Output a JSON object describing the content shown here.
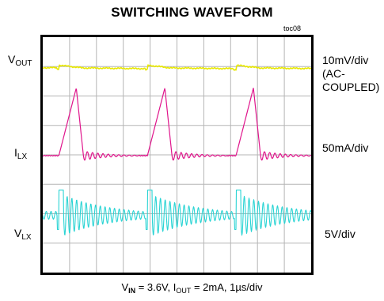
{
  "chart_data": {
    "type": "line",
    "title": "SWITCHING WAVEFORM",
    "figure_id": "toc08",
    "left_labels": {
      "vout": {
        "main": "V",
        "sub": "OUT"
      },
      "ilx": {
        "main": "I",
        "sub": "LX"
      },
      "vlx": {
        "main": "V",
        "sub": "LX"
      }
    },
    "right_labels": {
      "vout": [
        "10mV/div",
        "(AC-",
        "COUPLED)"
      ],
      "ilx": "50mA/div",
      "vlx": "5V/div"
    },
    "footer": {
      "vin_main": "V",
      "vin_sub": "IN",
      "vin_value": " = 3.6V, ",
      "iout_main": "I",
      "iout_sub": "OUT",
      "iout_value": " = 2mA, 1µs/div"
    },
    "grid": true,
    "divisions": {
      "x": 10,
      "y": 8
    },
    "time_per_div_us": 1,
    "switching_events_div": [
      0.6,
      3.9,
      7.2
    ],
    "series": [
      {
        "name": "VOUT",
        "color": "#e8e800",
        "scale": "10mV/div",
        "coupling": "AC"
      },
      {
        "name": "ILX",
        "color": "#e0158c",
        "scale": "50mA/div",
        "peak_div": 2.3
      },
      {
        "name": "VLX",
        "color": "#2ad4d4",
        "scale": "5V/div",
        "high_div": 2.2
      }
    ]
  }
}
